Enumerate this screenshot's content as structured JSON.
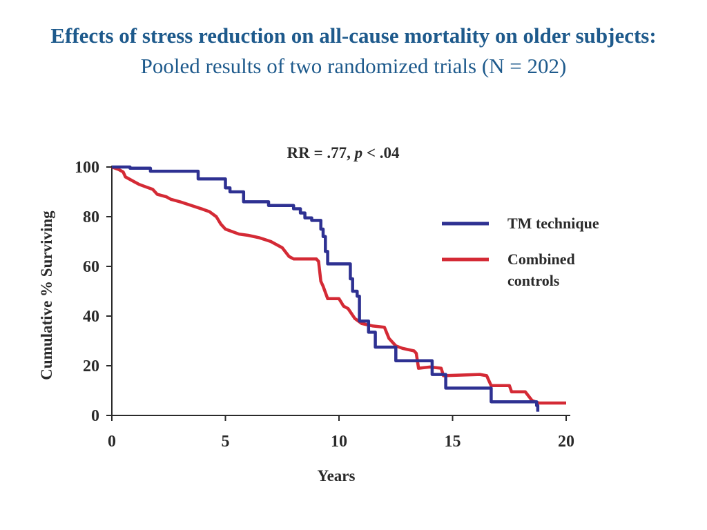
{
  "page": {
    "title": "Effects of stress reduction on all-cause mortality on older subjects:",
    "subtitle": "Pooled results of two randomized trials (N = 202)"
  },
  "colors": {
    "title": "#1e5a8c",
    "tm": "#2e3192",
    "control": "#d42a35",
    "axis": "#2a2a2a"
  },
  "chart_data": {
    "type": "line",
    "title": "",
    "annotation": {
      "prefix": "RR = .77, ",
      "p_symbol": "p",
      "suffix": " < .04"
    },
    "xlabel": "Years",
    "ylabel": "Cumulative % Surviving",
    "xlim": [
      0,
      20
    ],
    "ylim": [
      0,
      100
    ],
    "xticks": [
      0,
      5,
      10,
      15,
      20
    ],
    "yticks": [
      0,
      20,
      40,
      60,
      80,
      100
    ],
    "grid": false,
    "legend_position": "right",
    "series": [
      {
        "name": "TM technique",
        "color": "#2e3192",
        "step": true,
        "points": [
          [
            0,
            100
          ],
          [
            0.3,
            100
          ],
          [
            0.8,
            99.5
          ],
          [
            1.7,
            98.3
          ],
          [
            3.7,
            98.3
          ],
          [
            3.8,
            95.2
          ],
          [
            4.9,
            95.2
          ],
          [
            5.0,
            91.6
          ],
          [
            5.2,
            90
          ],
          [
            5.7,
            90
          ],
          [
            5.8,
            86
          ],
          [
            6.8,
            86
          ],
          [
            6.9,
            84.5
          ],
          [
            7.8,
            84.5
          ],
          [
            8.0,
            83.2
          ],
          [
            8.3,
            81.5
          ],
          [
            8.5,
            79.5
          ],
          [
            8.8,
            78.5
          ],
          [
            9.1,
            78.5
          ],
          [
            9.2,
            75
          ],
          [
            9.3,
            72
          ],
          [
            9.4,
            66
          ],
          [
            9.5,
            61
          ],
          [
            10.4,
            61
          ],
          [
            10.5,
            55
          ],
          [
            10.6,
            50
          ],
          [
            10.8,
            48
          ],
          [
            10.9,
            38
          ],
          [
            11.2,
            38
          ],
          [
            11.3,
            33.5
          ],
          [
            11.5,
            33.5
          ],
          [
            11.6,
            27.5
          ],
          [
            12.4,
            27.5
          ],
          [
            12.5,
            22
          ],
          [
            14.0,
            22
          ],
          [
            14.1,
            16.5
          ],
          [
            14.6,
            16.5
          ],
          [
            14.7,
            11
          ],
          [
            16.6,
            11
          ],
          [
            16.7,
            5.5
          ],
          [
            18.6,
            5.5
          ],
          [
            18.7,
            4
          ],
          [
            18.75,
            1.5
          ]
        ]
      },
      {
        "name": "Combined\ncontrols",
        "color": "#d42a35",
        "step": false,
        "points": [
          [
            0,
            100
          ],
          [
            0.3,
            99
          ],
          [
            0.5,
            98
          ],
          [
            0.6,
            96
          ],
          [
            0.8,
            95
          ],
          [
            1.0,
            94
          ],
          [
            1.2,
            93
          ],
          [
            1.5,
            92
          ],
          [
            1.8,
            91
          ],
          [
            2.0,
            89
          ],
          [
            2.4,
            88
          ],
          [
            2.6,
            87
          ],
          [
            3.0,
            86
          ],
          [
            3.5,
            84.5
          ],
          [
            4.0,
            83
          ],
          [
            4.3,
            82
          ],
          [
            4.6,
            80
          ],
          [
            4.8,
            77
          ],
          [
            5.0,
            75
          ],
          [
            5.3,
            74
          ],
          [
            5.6,
            73
          ],
          [
            6.0,
            72.5
          ],
          [
            6.5,
            71.5
          ],
          [
            7.0,
            70
          ],
          [
            7.5,
            67.5
          ],
          [
            7.8,
            64
          ],
          [
            8.0,
            63
          ],
          [
            8.5,
            63
          ],
          [
            9.0,
            63
          ],
          [
            9.1,
            62
          ],
          [
            9.2,
            54
          ],
          [
            9.3,
            52
          ],
          [
            9.5,
            47
          ],
          [
            10.0,
            47
          ],
          [
            10.2,
            44
          ],
          [
            10.4,
            43
          ],
          [
            10.7,
            39
          ],
          [
            11.0,
            37
          ],
          [
            11.5,
            36
          ],
          [
            12.0,
            35.5
          ],
          [
            12.2,
            31
          ],
          [
            12.5,
            28
          ],
          [
            12.8,
            27
          ],
          [
            13.3,
            26
          ],
          [
            13.4,
            25
          ],
          [
            13.5,
            19
          ],
          [
            14.0,
            19.5
          ],
          [
            14.5,
            19
          ],
          [
            14.6,
            16
          ],
          [
            16.2,
            16.5
          ],
          [
            16.5,
            16
          ],
          [
            16.6,
            14
          ],
          [
            16.7,
            12
          ],
          [
            17.5,
            12
          ],
          [
            17.6,
            9.5
          ],
          [
            18.2,
            9.5
          ],
          [
            18.5,
            6
          ],
          [
            18.8,
            5
          ],
          [
            20.0,
            5
          ]
        ]
      }
    ]
  }
}
